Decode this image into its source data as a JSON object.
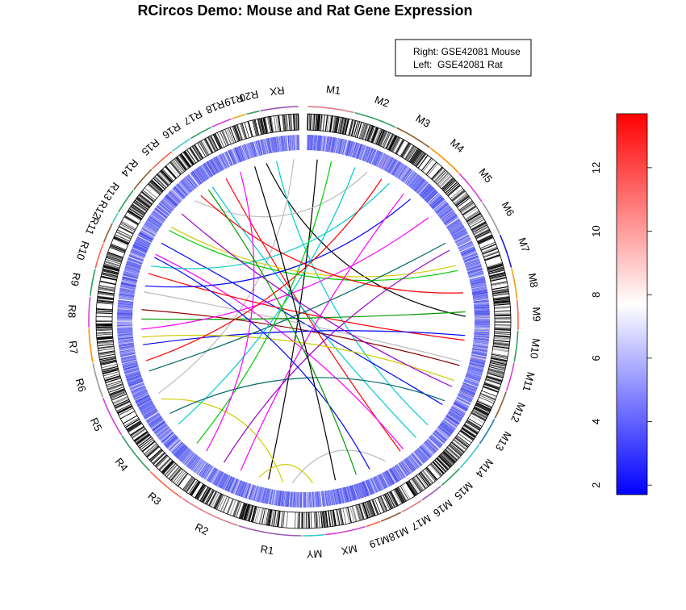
{
  "chart_data": {
    "type": "circos",
    "title": "RCircos Demo: Mouse and Rat Gene Expression",
    "legend": {
      "placement": "top-right",
      "entries": [
        "Right: GSE42081 Mouse",
        "Left:  GSE42081 Rat"
      ]
    },
    "colorbar": {
      "ticks": [
        2,
        4,
        6,
        8,
        10,
        12
      ],
      "range": [
        1.7,
        13.7
      ],
      "colors": [
        "#0000ff",
        "#ffffff",
        "#ff0000"
      ]
    },
    "chromosomes": [
      {
        "name": "M1",
        "length": 195,
        "color": "#e07a8a"
      },
      {
        "name": "M2",
        "length": 182,
        "color": "#2e9e5e"
      },
      {
        "name": "M3",
        "length": 160,
        "color": "#8b5a2b"
      },
      {
        "name": "M4",
        "length": 157,
        "color": "#ff8c00"
      },
      {
        "name": "M5",
        "length": 152,
        "color": "#d63fd6"
      },
      {
        "name": "M6",
        "length": 150,
        "color": "#9a9a9a"
      },
      {
        "name": "M7",
        "length": 145,
        "color": "#1c1cd6"
      },
      {
        "name": "M8",
        "length": 130,
        "color": "#e8a317"
      },
      {
        "name": "M9",
        "length": 125,
        "color": "#ff6347"
      },
      {
        "name": "M10",
        "length": 131,
        "color": "#2e9e5e"
      },
      {
        "name": "M11",
        "length": 122,
        "color": "#d63fd6"
      },
      {
        "name": "M12",
        "length": 120,
        "color": "#8b5a2b"
      },
      {
        "name": "M13",
        "length": 121,
        "color": "#1f7ab8"
      },
      {
        "name": "M14",
        "length": 125,
        "color": "#3cc8c8"
      },
      {
        "name": "M15",
        "length": 104,
        "color": "#2e9e5e"
      },
      {
        "name": "M16",
        "length": 98,
        "color": "#9b59b6"
      },
      {
        "name": "M17",
        "length": 95,
        "color": "#e07a8a"
      },
      {
        "name": "M18",
        "length": 91,
        "color": "#8b5a2b"
      },
      {
        "name": "M19",
        "length": 61,
        "color": "#ff6347"
      },
      {
        "name": "MX",
        "length": 171,
        "color": "#d63fd6"
      },
      {
        "name": "MY",
        "length": 92,
        "color": "#3cc8c8"
      },
      {
        "name": "R1",
        "length": 267,
        "color": "#9b59b6"
      },
      {
        "name": "R2",
        "length": 258,
        "color": "#e07a8a"
      },
      {
        "name": "R3",
        "length": 171,
        "color": "#ff6347"
      },
      {
        "name": "R4",
        "length": 188,
        "color": "#2e9e5e"
      },
      {
        "name": "R5",
        "length": 173,
        "color": "#d63fd6"
      },
      {
        "name": "R6",
        "length": 147,
        "color": "#9a9a9a"
      },
      {
        "name": "R7",
        "length": 143,
        "color": "#ff8c00"
      },
      {
        "name": "R8",
        "length": 129,
        "color": "#d63fd6"
      },
      {
        "name": "R9",
        "length": 113,
        "color": "#2e9e5e"
      },
      {
        "name": "R10",
        "length": 110,
        "color": "#ff6347"
      },
      {
        "name": "R11",
        "length": 87,
        "color": "#8b5a2b"
      },
      {
        "name": "R12",
        "length": 46,
        "color": "#3cc8c8"
      },
      {
        "name": "R13",
        "length": 111,
        "color": "#2e9e5e"
      },
      {
        "name": "R14",
        "length": 112,
        "color": "#8b5a2b"
      },
      {
        "name": "R15",
        "length": 109,
        "color": "#ff6347"
      },
      {
        "name": "R16",
        "length": 90,
        "color": "#3cc8c8"
      },
      {
        "name": "R17",
        "length": 97,
        "color": "#2e9e5e"
      },
      {
        "name": "R18",
        "length": 87,
        "color": "#d63fd6"
      },
      {
        "name": "R19",
        "length": 59,
        "color": "#e8a317"
      },
      {
        "name": "R20",
        "length": 55,
        "color": "#2e9e5e"
      },
      {
        "name": "RX",
        "length": 160,
        "color": "#9b59b6"
      }
    ],
    "links": [
      {
        "from": [
          "R20",
          0.6
        ],
        "to": [
          "M9",
          0.5
        ],
        "color": "#000000"
      },
      {
        "from": [
          "RX",
          0.2
        ],
        "to": [
          "M14",
          0.6
        ],
        "color": "#00cccc"
      },
      {
        "from": [
          "RX",
          0.8
        ],
        "to": [
          "R5",
          0.5
        ],
        "color": "#bbbbbb"
      },
      {
        "from": [
          "M1",
          0.3
        ],
        "to": [
          "R1",
          0.7
        ],
        "color": "#000000"
      },
      {
        "from": [
          "R17",
          0.5
        ],
        "to": [
          "M16",
          0.5
        ],
        "color": "#ff0000"
      },
      {
        "from": [
          "R16",
          0.6
        ],
        "to": [
          "M15",
          0.4
        ],
        "color": "#00cccc"
      },
      {
        "from": [
          "R15",
          0.4
        ],
        "to": [
          "M2",
          0.8
        ],
        "color": "#bbbbbb"
      },
      {
        "from": [
          "R13",
          0.5
        ],
        "to": [
          "M7",
          0.6
        ],
        "color": "#00cc00"
      },
      {
        "from": [
          "R13",
          0.7
        ],
        "to": [
          "M7",
          0.4
        ],
        "color": "#cccc00"
      },
      {
        "from": [
          "R12",
          0.5
        ],
        "to": [
          "M13",
          0.5
        ],
        "color": "#0000ff"
      },
      {
        "from": [
          "R11",
          0.5
        ],
        "to": [
          "M16",
          0.3
        ],
        "color": "#ff00ff"
      },
      {
        "from": [
          "R10",
          0.4
        ],
        "to": [
          "M10",
          0.5
        ],
        "color": "#ff0000"
      },
      {
        "from": [
          "R10",
          0.8
        ],
        "to": [
          "M3",
          0.6
        ],
        "color": "#00cccc"
      },
      {
        "from": [
          "R9",
          0.5
        ],
        "to": [
          "M11",
          0.4
        ],
        "color": "#bbbbbb"
      },
      {
        "from": [
          "R9",
          0.8
        ],
        "to": [
          "M4",
          0.5
        ],
        "color": "#0000ff"
      },
      {
        "from": [
          "R8",
          0.3
        ],
        "to": [
          "M9",
          0.3
        ],
        "color": "#009900"
      },
      {
        "from": [
          "R8",
          0.7
        ],
        "to": [
          "M11",
          0.6
        ],
        "color": "#8b0000"
      },
      {
        "from": [
          "R7",
          0.3
        ],
        "to": [
          "M10",
          0.3
        ],
        "color": "#0000ff"
      },
      {
        "from": [
          "R7",
          0.6
        ],
        "to": [
          "M12",
          0.3
        ],
        "color": "#cccc00"
      },
      {
        "from": [
          "R7",
          0.9
        ],
        "to": [
          "M5",
          0.4
        ],
        "color": "#ff00ff"
      },
      {
        "from": [
          "R6",
          0.3
        ],
        "to": [
          "M6",
          0.5
        ],
        "color": "#006666"
      },
      {
        "from": [
          "R6",
          0.7
        ],
        "to": [
          "M3",
          0.3
        ],
        "color": "#ff0000"
      },
      {
        "from": [
          "R5",
          0.3
        ],
        "to": [
          "R1",
          0.4
        ],
        "color": "#cccc00"
      },
      {
        "from": [
          "R4",
          0.4
        ],
        "to": [
          "M2",
          0.4
        ],
        "color": "#00cccc"
      },
      {
        "from": [
          "R3",
          0.6
        ],
        "to": [
          "M1",
          0.7
        ],
        "color": "#00cc00"
      },
      {
        "from": [
          "R2",
          0.3
        ],
        "to": [
          "M4",
          0.2
        ],
        "color": "#ff00ff"
      },
      {
        "from": [
          "R2",
          0.7
        ],
        "to": [
          "M6",
          0.8
        ],
        "color": "#9900cc"
      },
      {
        "from": [
          "R1",
          0.2
        ],
        "to": [
          "M17",
          0.5
        ],
        "color": "#bbbbbb"
      },
      {
        "from": [
          "R14",
          0.5
        ],
        "to": [
          "M12",
          0.6
        ],
        "color": "#9900cc"
      },
      {
        "from": [
          "R15",
          0.8
        ],
        "to": [
          "M8",
          0.5
        ],
        "color": "#ff0000"
      },
      {
        "from": [
          "R4",
          0.8
        ],
        "to": [
          "M13",
          0.3
        ],
        "color": "#006666"
      },
      {
        "from": [
          "R3",
          0.2
        ],
        "to": [
          "R18",
          0.4
        ],
        "color": "#ff00ff"
      },
      {
        "from": [
          "M18",
          0.5
        ],
        "to": [
          "R11",
          0.3
        ],
        "color": "#0000ff"
      },
      {
        "from": [
          "M19",
          0.5
        ],
        "to": [
          "R16",
          0.3
        ],
        "color": "#009900"
      },
      {
        "from": [
          "MX",
          0.5
        ],
        "to": [
          "R19",
          0.5
        ],
        "color": "#000000"
      },
      {
        "from": [
          "MY",
          0.4
        ],
        "to": [
          "R1",
          0.9
        ],
        "color": "#cccc00"
      }
    ]
  }
}
